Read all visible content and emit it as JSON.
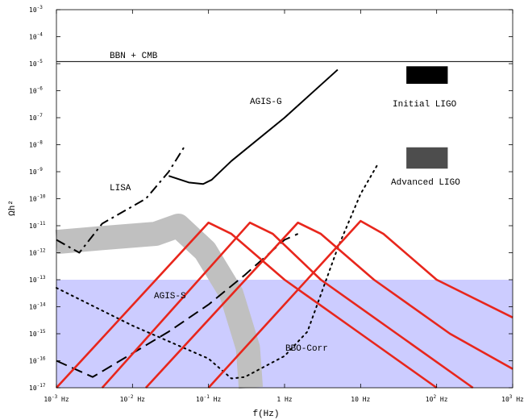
{
  "chart_data": {
    "type": "line",
    "title": "",
    "xlabel": "f(Hz)",
    "ylabel": "Ωh²",
    "x_scale": "log",
    "y_scale": "log",
    "xlim": [
      0.001,
      1000
    ],
    "ylim": [
      1e-17,
      0.001
    ],
    "x_ticks": [
      {
        "value": 0.001,
        "base": "10",
        "exp": "-3",
        "unit": "Hz"
      },
      {
        "value": 0.01,
        "base": "10",
        "exp": "-2",
        "unit": "Hz"
      },
      {
        "value": 0.1,
        "base": "10",
        "exp": "-1",
        "unit": "Hz"
      },
      {
        "value": 1,
        "base": "1",
        "exp": "",
        "unit": "Hz"
      },
      {
        "value": 10,
        "base": "10",
        "exp": "",
        "unit": "Hz"
      },
      {
        "value": 100,
        "base": "10",
        "exp": "2",
        "unit": "Hz"
      },
      {
        "value": 1000,
        "base": "10",
        "exp": "3",
        "unit": "Hz"
      }
    ],
    "y_ticks": [
      {
        "value": 0.001,
        "exp": "-3"
      },
      {
        "value": 0.0001,
        "exp": "-4"
      },
      {
        "value": 1e-05,
        "exp": "-5"
      },
      {
        "value": 1e-06,
        "exp": "-6"
      },
      {
        "value": 1e-07,
        "exp": "-7"
      },
      {
        "value": 1e-08,
        "exp": "-8"
      },
      {
        "value": 1e-09,
        "exp": "-9"
      },
      {
        "value": 1e-10,
        "exp": "-10"
      },
      {
        "value": 1e-11,
        "exp": "-11"
      },
      {
        "value": 1e-12,
        "exp": "-12"
      },
      {
        "value": 1e-13,
        "exp": "-13"
      },
      {
        "value": 1e-14,
        "exp": "-14"
      },
      {
        "value": 1e-15,
        "exp": "-15"
      },
      {
        "value": 1e-16,
        "exp": "-16"
      },
      {
        "value": 1e-17,
        "exp": "-17"
      }
    ],
    "bbn_cmb": {
      "name": "BBN + CMB",
      "value": 1.2e-05
    },
    "shaded_region": {
      "x": [
        0.001,
        1000
      ],
      "y": [
        1e-17,
        1e-13
      ],
      "color": "#ccccff"
    },
    "gray_band": {
      "color": "#c0c0c0",
      "points": [
        [
          0.001,
          2.5e-12
        ],
        [
          0.004,
          3.5e-12
        ],
        [
          0.02,
          5e-12
        ],
        [
          0.04,
          1e-11
        ],
        [
          0.09,
          1.2e-12
        ],
        [
          0.2,
          3e-14
        ],
        [
          0.33,
          3e-16
        ],
        [
          0.36,
          1e-17
        ]
      ]
    },
    "series": [
      {
        "name": "LISA",
        "style": "dashdot",
        "color": "#000000",
        "points": [
          [
            0.001,
            3e-12
          ],
          [
            0.002,
            1e-12
          ],
          [
            0.004,
            1.2e-11
          ],
          [
            0.015,
            1e-10
          ],
          [
            0.03,
            1e-09
          ],
          [
            0.05,
            1e-08
          ]
        ]
      },
      {
        "name": "AGIS-G",
        "style": "solid",
        "color": "#000000",
        "points": [
          [
            0.03,
            7e-10
          ],
          [
            0.055,
            4e-10
          ],
          [
            0.085,
            3.5e-10
          ],
          [
            0.11,
            5e-10
          ],
          [
            0.2,
            2.5e-09
          ],
          [
            1,
            1e-07
          ],
          [
            5,
            6e-06
          ]
        ]
      },
      {
        "name": "AGIS-S",
        "style": "dashed",
        "color": "#000000",
        "points": [
          [
            0.001,
            1e-16
          ],
          [
            0.003,
            2.5e-17
          ],
          [
            0.006,
            8e-17
          ],
          [
            0.03,
            1.2e-15
          ],
          [
            0.1,
            1.2e-14
          ],
          [
            0.3,
            1.5e-13
          ],
          [
            1,
            3e-12
          ],
          [
            1.5,
            5e-12
          ]
        ]
      },
      {
        "name": "BBO-Corr",
        "style": "dotted",
        "color": "#000000",
        "points": [
          [
            0.001,
            5e-14
          ],
          [
            0.01,
            2e-15
          ],
          [
            0.1,
            1.2e-16
          ],
          [
            0.2,
            2.2e-17
          ],
          [
            0.3,
            2.5e-17
          ],
          [
            1,
            1.5e-16
          ],
          [
            2,
            1.2e-15
          ],
          [
            5,
            1.5e-12
          ],
          [
            10,
            1.5e-10
          ],
          [
            17,
            2e-09
          ]
        ]
      },
      {
        "name": "",
        "style": "solid",
        "color": "#e8261c",
        "points": [
          [
            0.001,
            1e-17
          ],
          [
            0.1,
            1.3e-11
          ],
          [
            0.2,
            5e-12
          ],
          [
            1,
            1e-13
          ],
          [
            10,
            1e-15
          ],
          [
            100,
            1e-17
          ]
        ]
      },
      {
        "name": "",
        "style": "solid",
        "color": "#e8261c",
        "points": [
          [
            0.004,
            1e-17
          ],
          [
            0.35,
            1.3e-11
          ],
          [
            0.7,
            5e-12
          ],
          [
            3,
            1e-13
          ],
          [
            30,
            1e-15
          ],
          [
            300,
            1e-17
          ]
        ]
      },
      {
        "name": "",
        "style": "solid",
        "color": "#e8261c",
        "points": [
          [
            0.015,
            1e-17
          ],
          [
            1.5,
            1.3e-11
          ],
          [
            3,
            5e-12
          ],
          [
            15,
            1e-13
          ],
          [
            150,
            1e-15
          ],
          [
            1000,
            5e-17
          ]
        ]
      },
      {
        "name": "",
        "style": "solid",
        "color": "#e8261c",
        "points": [
          [
            0.1,
            1e-17
          ],
          [
            10,
            1.5e-11
          ],
          [
            20,
            5e-12
          ],
          [
            100,
            1e-13
          ],
          [
            1000,
            4e-15
          ]
        ]
      }
    ],
    "boxes": [
      {
        "name": "Initial LIGO",
        "x": [
          40,
          140
        ],
        "y": [
          1.8e-06,
          8e-06
        ],
        "color": "#000000"
      },
      {
        "name": "Advanced LIGO",
        "x": [
          40,
          140
        ],
        "y": [
          1.3e-09,
          8e-09
        ],
        "color": "#4d4d4d"
      }
    ],
    "labels": {
      "bbn_cmb": "BBN + CMB",
      "agis_g": "AGIS-G",
      "initial_ligo": "Initial LIGO",
      "lisa": "LISA",
      "advanced_ligo": "Advanced LIGO",
      "agis_s": "AGIS-S",
      "bbo_corr": "BBO-Corr"
    }
  }
}
